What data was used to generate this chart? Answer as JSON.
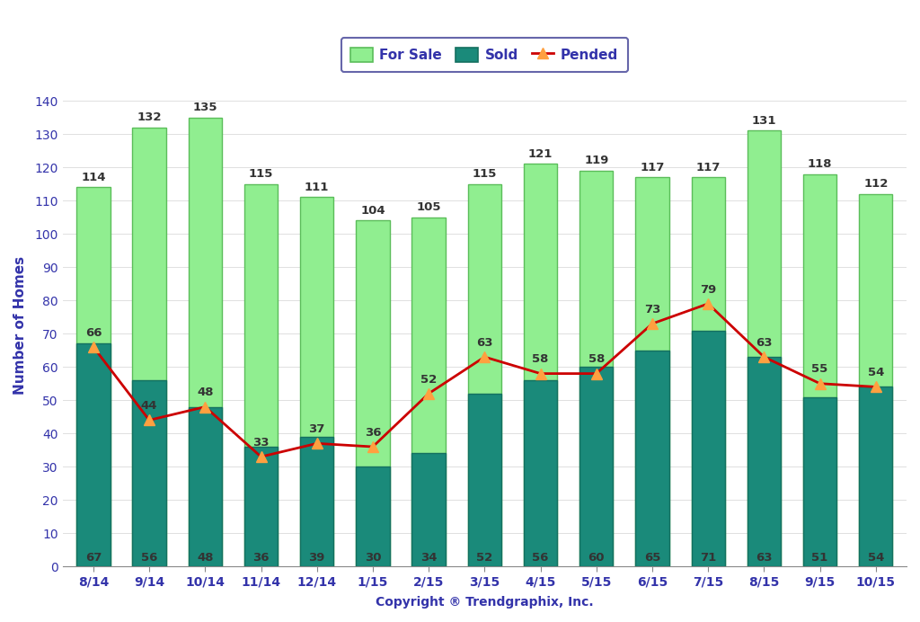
{
  "categories": [
    "8/14",
    "9/14",
    "10/14",
    "11/14",
    "12/14",
    "1/15",
    "2/15",
    "3/15",
    "4/15",
    "5/15",
    "6/15",
    "7/15",
    "8/15",
    "9/15",
    "10/15"
  ],
  "for_sale": [
    114,
    132,
    135,
    115,
    111,
    104,
    105,
    115,
    121,
    119,
    117,
    117,
    131,
    118,
    112
  ],
  "sold": [
    67,
    56,
    48,
    36,
    39,
    30,
    34,
    52,
    56,
    60,
    65,
    71,
    63,
    51,
    54
  ],
  "pended": [
    66,
    44,
    48,
    33,
    37,
    36,
    52,
    63,
    58,
    58,
    73,
    79,
    63,
    55,
    54
  ],
  "for_sale_color": "#90EE90",
  "for_sale_edge_color": "#5BBD5A",
  "sold_color": "#1A8A7A",
  "sold_edge_color": "#147060",
  "pended_line_color": "#CC0000",
  "pended_marker_color": "#FFA040",
  "ylabel": "Number of Homes",
  "xlabel": "Copyright ® Trendgraphix, Inc.",
  "ylim": [
    0,
    145
  ],
  "yticks": [
    0,
    10,
    20,
    30,
    40,
    50,
    60,
    70,
    80,
    90,
    100,
    110,
    120,
    130,
    140
  ],
  "bar_width": 0.6,
  "background_color": "#ffffff",
  "legend_for_sale": "For Sale",
  "legend_sold": "Sold",
  "legend_pended": "Pended",
  "label_fontsize": 10,
  "tick_fontsize": 10,
  "value_fontsize": 9.5,
  "axis_color": "#3333AA",
  "sold_label_color": "#333333",
  "for_sale_label_color": "#333333",
  "pended_label_color": "#333333"
}
